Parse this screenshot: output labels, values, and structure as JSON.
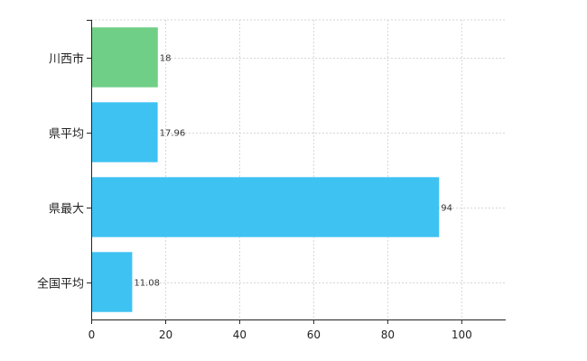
{
  "chart_data": {
    "type": "bar",
    "orientation": "horizontal",
    "categories": [
      "川西市",
      "県平均",
      "県最大",
      "全国平均"
    ],
    "values": [
      18,
      17.96,
      94,
      11.08
    ],
    "data_labels": [
      "18",
      "17.96",
      "94",
      "11.08"
    ],
    "bar_colors": [
      "#6fcf86",
      "#3ec2f2",
      "#3ec2f2",
      "#3ec2f2"
    ],
    "xlim": [
      0,
      112
    ],
    "xticks": [
      0,
      20,
      40,
      60,
      80,
      100
    ],
    "grid": true,
    "legend": "none",
    "title": "",
    "xlabel": "",
    "ylabel": ""
  }
}
